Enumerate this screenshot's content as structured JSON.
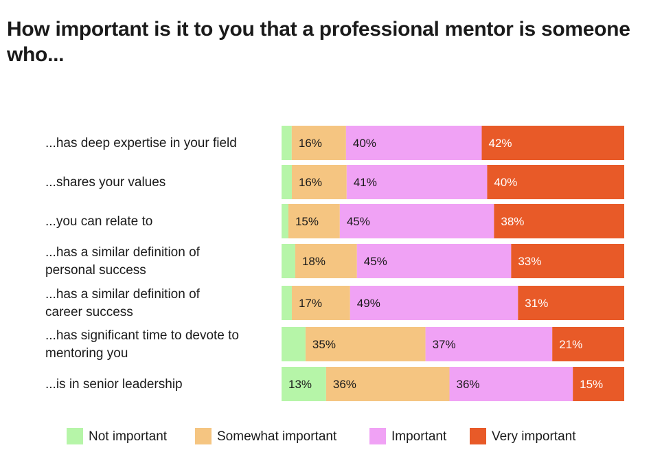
{
  "title": "How important is it to you that a professional mentor is someone who...",
  "colors": {
    "not_important": "#b6f5a8",
    "somewhat_important": "#f5c581",
    "important": "#f0a2f5",
    "very_important": "#e85a28"
  },
  "chart_data": {
    "type": "bar",
    "orientation": "horizontal",
    "stacked": true,
    "xlim": [
      0,
      100
    ],
    "grid": false,
    "legend_position": "bottom",
    "categories": [
      [
        "...has deep expertise in your field"
      ],
      [
        "...shares your values"
      ],
      [
        "...you can relate to"
      ],
      [
        "...has a similar definition of",
        "personal success"
      ],
      [
        "...has a similar definition of",
        "career success"
      ],
      [
        "...has significant time to devote to",
        "mentoring you"
      ],
      [
        "...is in senior leadership"
      ]
    ],
    "series": [
      {
        "name": "Not important",
        "color": "#b6f5a8",
        "values": [
          3,
          3,
          2,
          4,
          3,
          7,
          13
        ],
        "labels": [
          "",
          "",
          "",
          "",
          "",
          "",
          "13%"
        ]
      },
      {
        "name": "Somewhat important",
        "color": "#f5c581",
        "values": [
          16,
          16,
          15,
          18,
          17,
          35,
          36
        ],
        "labels": [
          "16%",
          "16%",
          "15%",
          "18%",
          "17%",
          "35%",
          "36%"
        ]
      },
      {
        "name": "Important",
        "color": "#f0a2f5",
        "values": [
          40,
          41,
          45,
          45,
          49,
          37,
          36
        ],
        "labels": [
          "40%",
          "41%",
          "45%",
          "45%",
          "49%",
          "37%",
          "36%"
        ]
      },
      {
        "name": "Very important",
        "color": "#e85a28",
        "values": [
          42,
          40,
          38,
          33,
          31,
          21,
          15
        ],
        "labels": [
          "42%",
          "40%",
          "38%",
          "33%",
          "31%",
          "21%",
          "15%"
        ]
      }
    ]
  }
}
